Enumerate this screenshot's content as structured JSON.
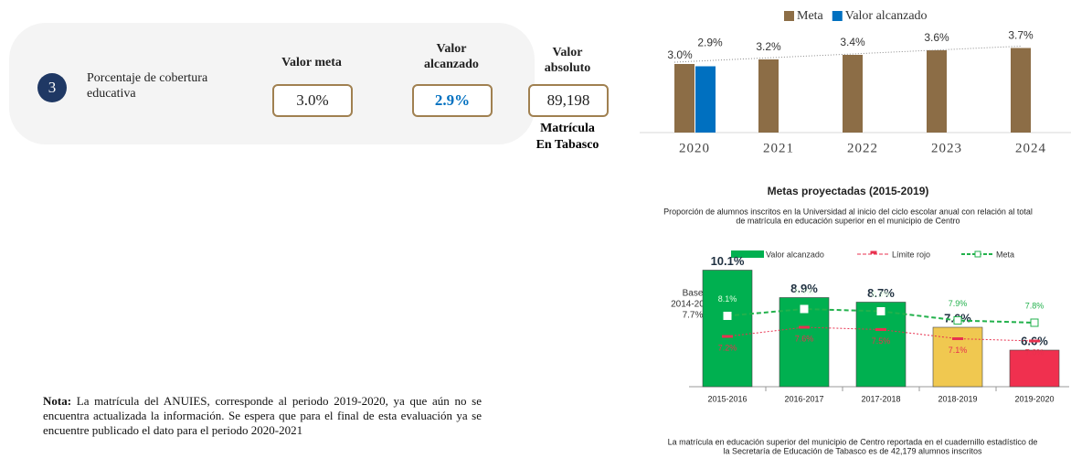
{
  "indicator": {
    "number": "3",
    "label": "Porcentaje de cobertura educativa",
    "headers": [
      "Valor meta",
      "Valor alcanzado",
      "Valor absoluto"
    ],
    "values": [
      "3.0%",
      "2.9%",
      "89,198"
    ],
    "caption": [
      "Matrícula",
      "En Tabasco"
    ]
  },
  "note": {
    "label": "Nota:",
    "text": "La matrícula del ANUIES, corresponde al periodo 2019-2020, ya que aún no se encuentra actualizada la información. Se espera que para el final de esta evaluación ya se encuentre publicado el dato para el periodo 2020-2021"
  },
  "chart_data": [
    {
      "type": "bar",
      "categories": [
        "2020",
        "2021",
        "2022",
        "2023",
        "2024"
      ],
      "series": [
        {
          "name": "Meta",
          "color": "#8c6d46",
          "values": [
            3.0,
            3.2,
            3.4,
            3.6,
            3.7
          ],
          "value_labels": [
            "3.0%",
            "3.2%",
            "3.4%",
            "3.6%",
            "3.7%"
          ]
        },
        {
          "name": "Valor alcanzado",
          "color": "#0070c0",
          "values": [
            2.9,
            null,
            null,
            null,
            null
          ],
          "value_labels": [
            "2.9%",
            null,
            null,
            null,
            null
          ]
        }
      ],
      "ylim": [
        0,
        4
      ],
      "trendline": true
    },
    {
      "type": "bar_line",
      "title": "Metas proyectadas (2015-2019)",
      "subtitle": [
        "Proporción de alumnos inscritos en la Universidad al inicio del ciclo escolar anual con relación al total",
        "de matrícula en educación superior en el municipio de Centro"
      ],
      "annotation": [
        "Base",
        "2014-2015",
        "7.7%"
      ],
      "footnote": [
        "La matrícula en educación superior del municipio de Centro reportada en el cuadernillo estadístico de",
        "la Secretaría de Educación de Tabasco es de 42,179 alumnos inscritos"
      ],
      "categories": [
        "2015-2016",
        "2016-2017",
        "2017-2018",
        "2018-2019",
        "2019-2020"
      ],
      "series": [
        {
          "name": "Valor alcanzado",
          "kind": "bar",
          "color": "#00b050",
          "colors": [
            "#00b050",
            "#00b050",
            "#00b050",
            "#f0c850",
            "#f0304f"
          ],
          "values": [
            10.1,
            8.9,
            8.7,
            7.6,
            6.6
          ],
          "value_labels": [
            "10.1%",
            "8.9%",
            "8.7%",
            "7.6%",
            "6.6%"
          ]
        },
        {
          "name": "Límite rojo",
          "kind": "line",
          "color": "#e8314f",
          "values": [
            7.2,
            7.6,
            7.5,
            7.1,
            7.0
          ],
          "value_labels": [
            "7.2%",
            "7.6%",
            "7.5%",
            "7.1%",
            "7.0%"
          ]
        },
        {
          "name": "Meta",
          "kind": "line",
          "color": "#22b14c",
          "values": [
            8.1,
            8.4,
            8.3,
            7.9,
            7.8
          ],
          "value_labels": [
            "8.1%",
            "8.4%",
            "8.3%",
            "7.9%",
            "7.8%"
          ]
        }
      ],
      "ylim": [
        5,
        11
      ]
    }
  ]
}
